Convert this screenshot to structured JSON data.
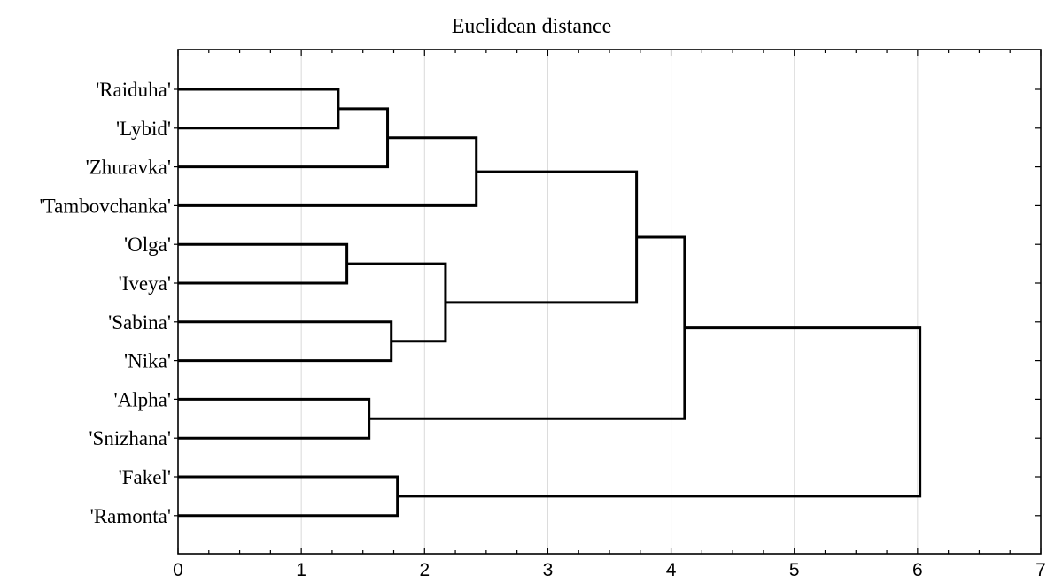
{
  "chart_data": {
    "type": "dendrogram",
    "title": "Euclidean distance",
    "orientation": "horizontal",
    "xlim": [
      0,
      7
    ],
    "xticks": [
      0,
      1,
      2,
      3,
      4,
      5,
      6,
      7
    ],
    "grid": "vertical-light",
    "leaves": [
      "'Raiduha'",
      "'Lybid'",
      "'Zhuravka'",
      "'Tambovchanka'",
      "'Olga'",
      "'Iveya'",
      "'Sabina'",
      "'Nika'",
      "'Alpha'",
      "'Snizhana'",
      "'Fakel'",
      "'Ramonta'"
    ],
    "merges": [
      {
        "left": "'Raiduha'",
        "right": "'Lybid'",
        "distance": 1.3
      },
      {
        "left": "'Olga'",
        "right": "'Iveya'",
        "distance": 1.37
      },
      {
        "left": "'Alpha'",
        "right": "'Snizhana'",
        "distance": 1.55
      },
      {
        "left": "('Raiduha','Lybid')",
        "right": "'Zhuravka'",
        "distance": 1.7
      },
      {
        "left": "'Sabina'",
        "right": "'Nika'",
        "distance": 1.73
      },
      {
        "left": "'Fakel'",
        "right": "'Ramonta'",
        "distance": 1.78
      },
      {
        "left": "('Olga','Iveya')",
        "right": "('Sabina','Nika')",
        "distance": 2.17
      },
      {
        "left": "('Raiduha','Lybid','Zhuravka')",
        "right": "'Tambovchanka'",
        "distance": 2.42
      },
      {
        "left": "('Raiduha'..'Tambovchanka')",
        "right": "('Olga'..'Nika')",
        "distance": 3.72
      },
      {
        "left": "('Raiduha'..'Nika')",
        "right": "('Alpha','Snizhana')",
        "distance": 4.11
      },
      {
        "left": "('Raiduha'..'Snizhana')",
        "right": "('Fakel','Ramonta')",
        "distance": 6.02
      }
    ]
  }
}
